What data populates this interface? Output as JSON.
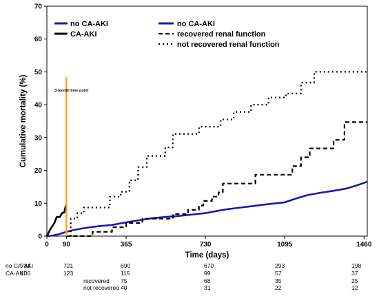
{
  "chart_data": {
    "type": "line",
    "xlabel": "Time (days)",
    "ylabel": "Cumulative mortality (%)",
    "xlim": [
      0,
      1475
    ],
    "ylim": [
      0,
      70
    ],
    "x_ticks": [
      0,
      90,
      365,
      730,
      1095,
      1460
    ],
    "y_ticks": [
      0,
      10,
      20,
      30,
      40,
      50,
      60,
      70
    ],
    "grid": false,
    "legend_left": [
      {
        "label": "no CA-AKI",
        "color": "#1a1aa8",
        "style": "solid"
      },
      {
        "label": "CA-AKI",
        "color": "#000000",
        "style": "solid"
      }
    ],
    "legend_right": [
      {
        "label": "no CA-AKI",
        "color": "#1a1aa8",
        "style": "solid"
      },
      {
        "label": "recovered renal function",
        "color": "#000000",
        "style": "dashed"
      },
      {
        "label": "not recovered renal function",
        "color": "#000000",
        "style": "dotted"
      }
    ],
    "annotation": {
      "label": "3-month time point",
      "x": 90,
      "color": "#f5a623"
    },
    "series": [
      {
        "name": "no CA-AKI",
        "color": "#1a1aa8",
        "style": "solid",
        "points": [
          [
            0,
            0
          ],
          [
            30,
            0.2
          ],
          [
            50,
            0.5
          ],
          [
            70,
            0.9
          ],
          [
            90,
            1.3
          ],
          [
            120,
            1.8
          ],
          [
            160,
            2.3
          ],
          [
            200,
            2.7
          ],
          [
            250,
            3.1
          ],
          [
            300,
            3.4
          ],
          [
            365,
            4.2
          ],
          [
            420,
            4.8
          ],
          [
            480,
            5.4
          ],
          [
            540,
            5.8
          ],
          [
            600,
            6.1
          ],
          [
            660,
            6.5
          ],
          [
            730,
            7.0
          ],
          [
            780,
            7.6
          ],
          [
            830,
            8.2
          ],
          [
            880,
            8.6
          ],
          [
            930,
            9.0
          ],
          [
            980,
            9.4
          ],
          [
            1030,
            9.8
          ],
          [
            1095,
            10.3
          ],
          [
            1150,
            11.5
          ],
          [
            1200,
            12.5
          ],
          [
            1260,
            13.2
          ],
          [
            1320,
            13.8
          ],
          [
            1380,
            14.5
          ],
          [
            1420,
            15.3
          ],
          [
            1460,
            16.2
          ],
          [
            1475,
            16.6
          ]
        ]
      },
      {
        "name": "CA-AKI",
        "color": "#000000",
        "style": "solid",
        "points": [
          [
            0,
            0
          ],
          [
            8,
            1.0
          ],
          [
            15,
            2.0
          ],
          [
            25,
            3.0
          ],
          [
            35,
            4.0
          ],
          [
            45,
            5.8
          ],
          [
            60,
            5.8
          ],
          [
            70,
            7.0
          ],
          [
            80,
            7.2
          ],
          [
            85,
            8.7
          ],
          [
            90,
            9.6
          ]
        ]
      },
      {
        "name": "recovered renal function",
        "color": "#000000",
        "style": "dashed",
        "points": [
          [
            90,
            0
          ],
          [
            210,
            0
          ],
          [
            210,
            1.3
          ],
          [
            270,
            1.3
          ],
          [
            300,
            1.3
          ],
          [
            300,
            2.7
          ],
          [
            365,
            2.7
          ],
          [
            365,
            4.0
          ],
          [
            440,
            4.0
          ],
          [
            440,
            5.3
          ],
          [
            580,
            5.3
          ],
          [
            580,
            6.7
          ],
          [
            650,
            6.7
          ],
          [
            650,
            8.0
          ],
          [
            700,
            8.0
          ],
          [
            700,
            9.3
          ],
          [
            720,
            9.3
          ],
          [
            720,
            10.7
          ],
          [
            760,
            10.7
          ],
          [
            760,
            12.0
          ],
          [
            790,
            12.0
          ],
          [
            790,
            13.3
          ],
          [
            810,
            13.3
          ],
          [
            810,
            16.0
          ],
          [
            960,
            16.0
          ],
          [
            960,
            18.7
          ],
          [
            1130,
            18.7
          ],
          [
            1130,
            21.3
          ],
          [
            1170,
            21.3
          ],
          [
            1170,
            24.0
          ],
          [
            1210,
            24.0
          ],
          [
            1210,
            26.7
          ],
          [
            1320,
            26.7
          ],
          [
            1320,
            29.3
          ],
          [
            1370,
            29.3
          ],
          [
            1370,
            34.7
          ],
          [
            1475,
            34.7
          ]
        ]
      },
      {
        "name": "not recovered renal function",
        "color": "#000000",
        "style": "dotted",
        "points": [
          [
            90,
            0
          ],
          [
            110,
            0
          ],
          [
            110,
            5.3
          ],
          [
            140,
            5.3
          ],
          [
            140,
            7.0
          ],
          [
            170,
            7.0
          ],
          [
            170,
            8.7
          ],
          [
            290,
            8.7
          ],
          [
            290,
            12.0
          ],
          [
            340,
            12.0
          ],
          [
            340,
            13.5
          ],
          [
            380,
            13.5
          ],
          [
            380,
            17.0
          ],
          [
            420,
            17.0
          ],
          [
            420,
            21.0
          ],
          [
            460,
            21.0
          ],
          [
            460,
            24.4
          ],
          [
            545,
            24.4
          ],
          [
            545,
            27.0
          ],
          [
            580,
            27.0
          ],
          [
            580,
            31.1
          ],
          [
            700,
            31.1
          ],
          [
            700,
            33.3
          ],
          [
            800,
            33.3
          ],
          [
            800,
            35.5
          ],
          [
            860,
            35.5
          ],
          [
            860,
            37.8
          ],
          [
            940,
            37.8
          ],
          [
            940,
            40.0
          ],
          [
            1020,
            40.0
          ],
          [
            1020,
            42.2
          ],
          [
            1100,
            42.2
          ],
          [
            1100,
            43.4
          ],
          [
            1170,
            43.4
          ],
          [
            1170,
            46.7
          ],
          [
            1230,
            46.7
          ],
          [
            1230,
            50.0
          ],
          [
            1475,
            50.0
          ]
        ]
      }
    ]
  },
  "risk_table": {
    "x_positions": [
      0,
      90,
      365,
      730,
      1095,
      1460
    ],
    "rows": [
      {
        "label": "no CA-AKI",
        "values": [
          "734",
          "721",
          "690",
          "670",
          "293",
          "198"
        ]
      },
      {
        "label": "CA-AKI",
        "values": [
          "136",
          "123",
          "115",
          "99",
          "57",
          "37"
        ]
      },
      {
        "label": "recovered",
        "values": [
          "",
          "",
          "75",
          "68",
          "35",
          "25"
        ]
      },
      {
        "label": "not recovered",
        "values": [
          "",
          "",
          "40",
          "31",
          "22",
          "12"
        ]
      }
    ]
  }
}
